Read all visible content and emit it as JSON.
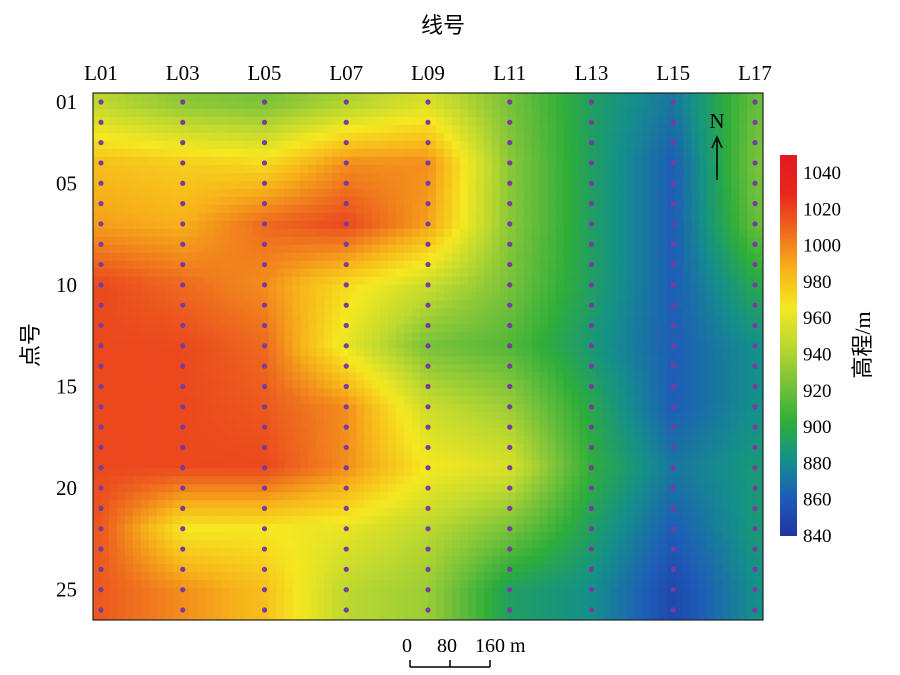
{
  "chart_data": {
    "type": "heatmap",
    "title": "",
    "xlabel": "线号",
    "ylabel": "点号",
    "x_ticks": [
      "L01",
      "L03",
      "L05",
      "L07",
      "L09",
      "L11",
      "L13",
      "L15",
      "L17"
    ],
    "y_ticks": [
      "01",
      "05",
      "10",
      "15",
      "20",
      "25"
    ],
    "x_range": [
      1,
      17
    ],
    "y_range": [
      1,
      26
    ],
    "colorbar": {
      "label": "高程/m",
      "ticks": [
        1040,
        1020,
        1000,
        980,
        960,
        940,
        920,
        900,
        880,
        860,
        840
      ],
      "range": [
        840,
        1040
      ],
      "colors": [
        {
          "value": 840,
          "color": "#2035a0"
        },
        {
          "value": 860,
          "color": "#1e5cb8"
        },
        {
          "value": 880,
          "color": "#14908a"
        },
        {
          "value": 900,
          "color": "#2fae3a"
        },
        {
          "value": 920,
          "color": "#78c23a"
        },
        {
          "value": 940,
          "color": "#bcd830"
        },
        {
          "value": 960,
          "color": "#f5e820"
        },
        {
          "value": 980,
          "color": "#f7b21a"
        },
        {
          "value": 1000,
          "color": "#ee6a1e"
        },
        {
          "value": 1020,
          "color": "#e8261d"
        },
        {
          "value": 1040,
          "color": "#e01b22"
        }
      ]
    },
    "elevation_grid": {
      "lines": [
        1,
        3,
        5,
        7,
        9,
        11,
        13,
        15,
        17
      ],
      "points": [
        1,
        4,
        7,
        10,
        13,
        16,
        19,
        22,
        25
      ],
      "values_m": [
        [
          940,
          925,
          920,
          935,
          950,
          920,
          890,
          870,
          915
        ],
        [
          975,
          970,
          965,
          990,
          990,
          925,
          890,
          860,
          920
        ],
        [
          985,
          980,
          1000,
          1010,
          985,
          925,
          890,
          860,
          915
        ],
        [
          1010,
          1000,
          990,
          965,
          945,
          920,
          890,
          860,
          895
        ],
        [
          1010,
          1010,
          1000,
          955,
          920,
          910,
          885,
          860,
          880
        ],
        [
          1010,
          1010,
          1005,
          990,
          945,
          930,
          895,
          860,
          880
        ],
        [
          1010,
          1010,
          1010,
          990,
          960,
          950,
          900,
          870,
          885
        ],
        [
          1005,
          960,
          960,
          955,
          940,
          920,
          890,
          860,
          885
        ],
        [
          1005,
          990,
          975,
          940,
          930,
          890,
          880,
          850,
          880
        ]
      ]
    },
    "north_arrow": "N",
    "scale_bar": {
      "ticks": [
        "0",
        "80",
        "160 m"
      ]
    },
    "grid": false
  }
}
